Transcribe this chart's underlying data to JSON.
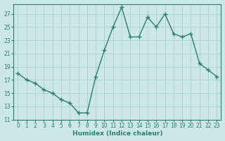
{
  "x": [
    0,
    1,
    2,
    3,
    4,
    5,
    6,
    7,
    8,
    9,
    10,
    11,
    12,
    13,
    14,
    15,
    16,
    17,
    18,
    19,
    20,
    21,
    22,
    23
  ],
  "y": [
    18,
    17,
    16.5,
    15.5,
    15,
    14,
    13.5,
    12,
    12,
    17.5,
    21.5,
    25,
    28,
    23.5,
    23.5,
    26.5,
    25,
    27,
    24,
    23.5,
    24,
    19.5,
    18.5,
    17.5
  ],
  "line_color": "#2e7d6e",
  "marker": "+",
  "marker_size": 4,
  "marker_lw": 1.0,
  "line_width": 1.0,
  "linestyle": "-",
  "bg_color": "#cce8e4",
  "grid_color": "#aacfcb",
  "xlabel": "Humidex (Indice chaleur)",
  "ylim": [
    11,
    28.5
  ],
  "xlim": [
    -0.5,
    23.5
  ],
  "yticks": [
    11,
    13,
    15,
    17,
    19,
    21,
    23,
    25,
    27
  ],
  "xticks": [
    0,
    1,
    2,
    3,
    4,
    5,
    6,
    7,
    8,
    9,
    10,
    11,
    12,
    13,
    14,
    15,
    16,
    17,
    18,
    19,
    20,
    21,
    22,
    23
  ],
  "xlabel_fontsize": 6.5,
  "tick_fontsize": 5.5
}
